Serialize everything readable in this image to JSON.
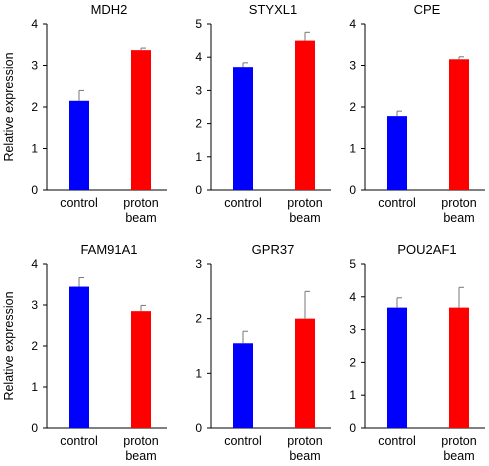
{
  "shared": {
    "ylabel": "Relative expression",
    "categories": [
      "control",
      "proton beam"
    ],
    "colors": [
      "#0000ff",
      "#ff0000"
    ]
  },
  "chart_data": [
    {
      "type": "bar",
      "title": "MDH2",
      "categories": [
        "control",
        "proton beam"
      ],
      "values": [
        2.15,
        3.37
      ],
      "errors": [
        0.25,
        0.05
      ],
      "ylim": [
        0,
        4
      ],
      "yticks": [
        0,
        1,
        2,
        3,
        4
      ],
      "ylabel": "Relative expression"
    },
    {
      "type": "bar",
      "title": "STYXL1",
      "categories": [
        "control",
        "proton beam"
      ],
      "values": [
        3.7,
        4.5
      ],
      "errors": [
        0.13,
        0.25
      ],
      "ylim": [
        0,
        5
      ],
      "yticks": [
        0,
        1,
        2,
        3,
        4,
        5
      ],
      "ylabel": ""
    },
    {
      "type": "bar",
      "title": "CPE",
      "categories": [
        "control",
        "proton beam"
      ],
      "values": [
        1.78,
        3.15
      ],
      "errors": [
        0.12,
        0.06
      ],
      "ylim": [
        0,
        4
      ],
      "yticks": [
        0,
        1,
        2,
        3,
        4
      ],
      "ylabel": ""
    },
    {
      "type": "bar",
      "title": "FAM91A1",
      "categories": [
        "control",
        "proton beam"
      ],
      "values": [
        3.45,
        2.85
      ],
      "errors": [
        0.22,
        0.14
      ],
      "ylim": [
        0,
        4
      ],
      "yticks": [
        0,
        1,
        2,
        3,
        4
      ],
      "ylabel": "Relative expression"
    },
    {
      "type": "bar",
      "title": "GPR37",
      "categories": [
        "control",
        "proton beam"
      ],
      "values": [
        1.55,
        2.0
      ],
      "errors": [
        0.22,
        0.5
      ],
      "ylim": [
        0,
        3
      ],
      "yticks": [
        0,
        1,
        2,
        3
      ],
      "ylabel": ""
    },
    {
      "type": "bar",
      "title": "POU2AF1",
      "categories": [
        "control",
        "proton beam"
      ],
      "values": [
        3.67,
        3.67
      ],
      "errors": [
        0.3,
        0.62
      ],
      "ylim": [
        0,
        5
      ],
      "yticks": [
        0,
        1,
        2,
        3,
        4,
        5
      ],
      "ylabel": ""
    }
  ]
}
